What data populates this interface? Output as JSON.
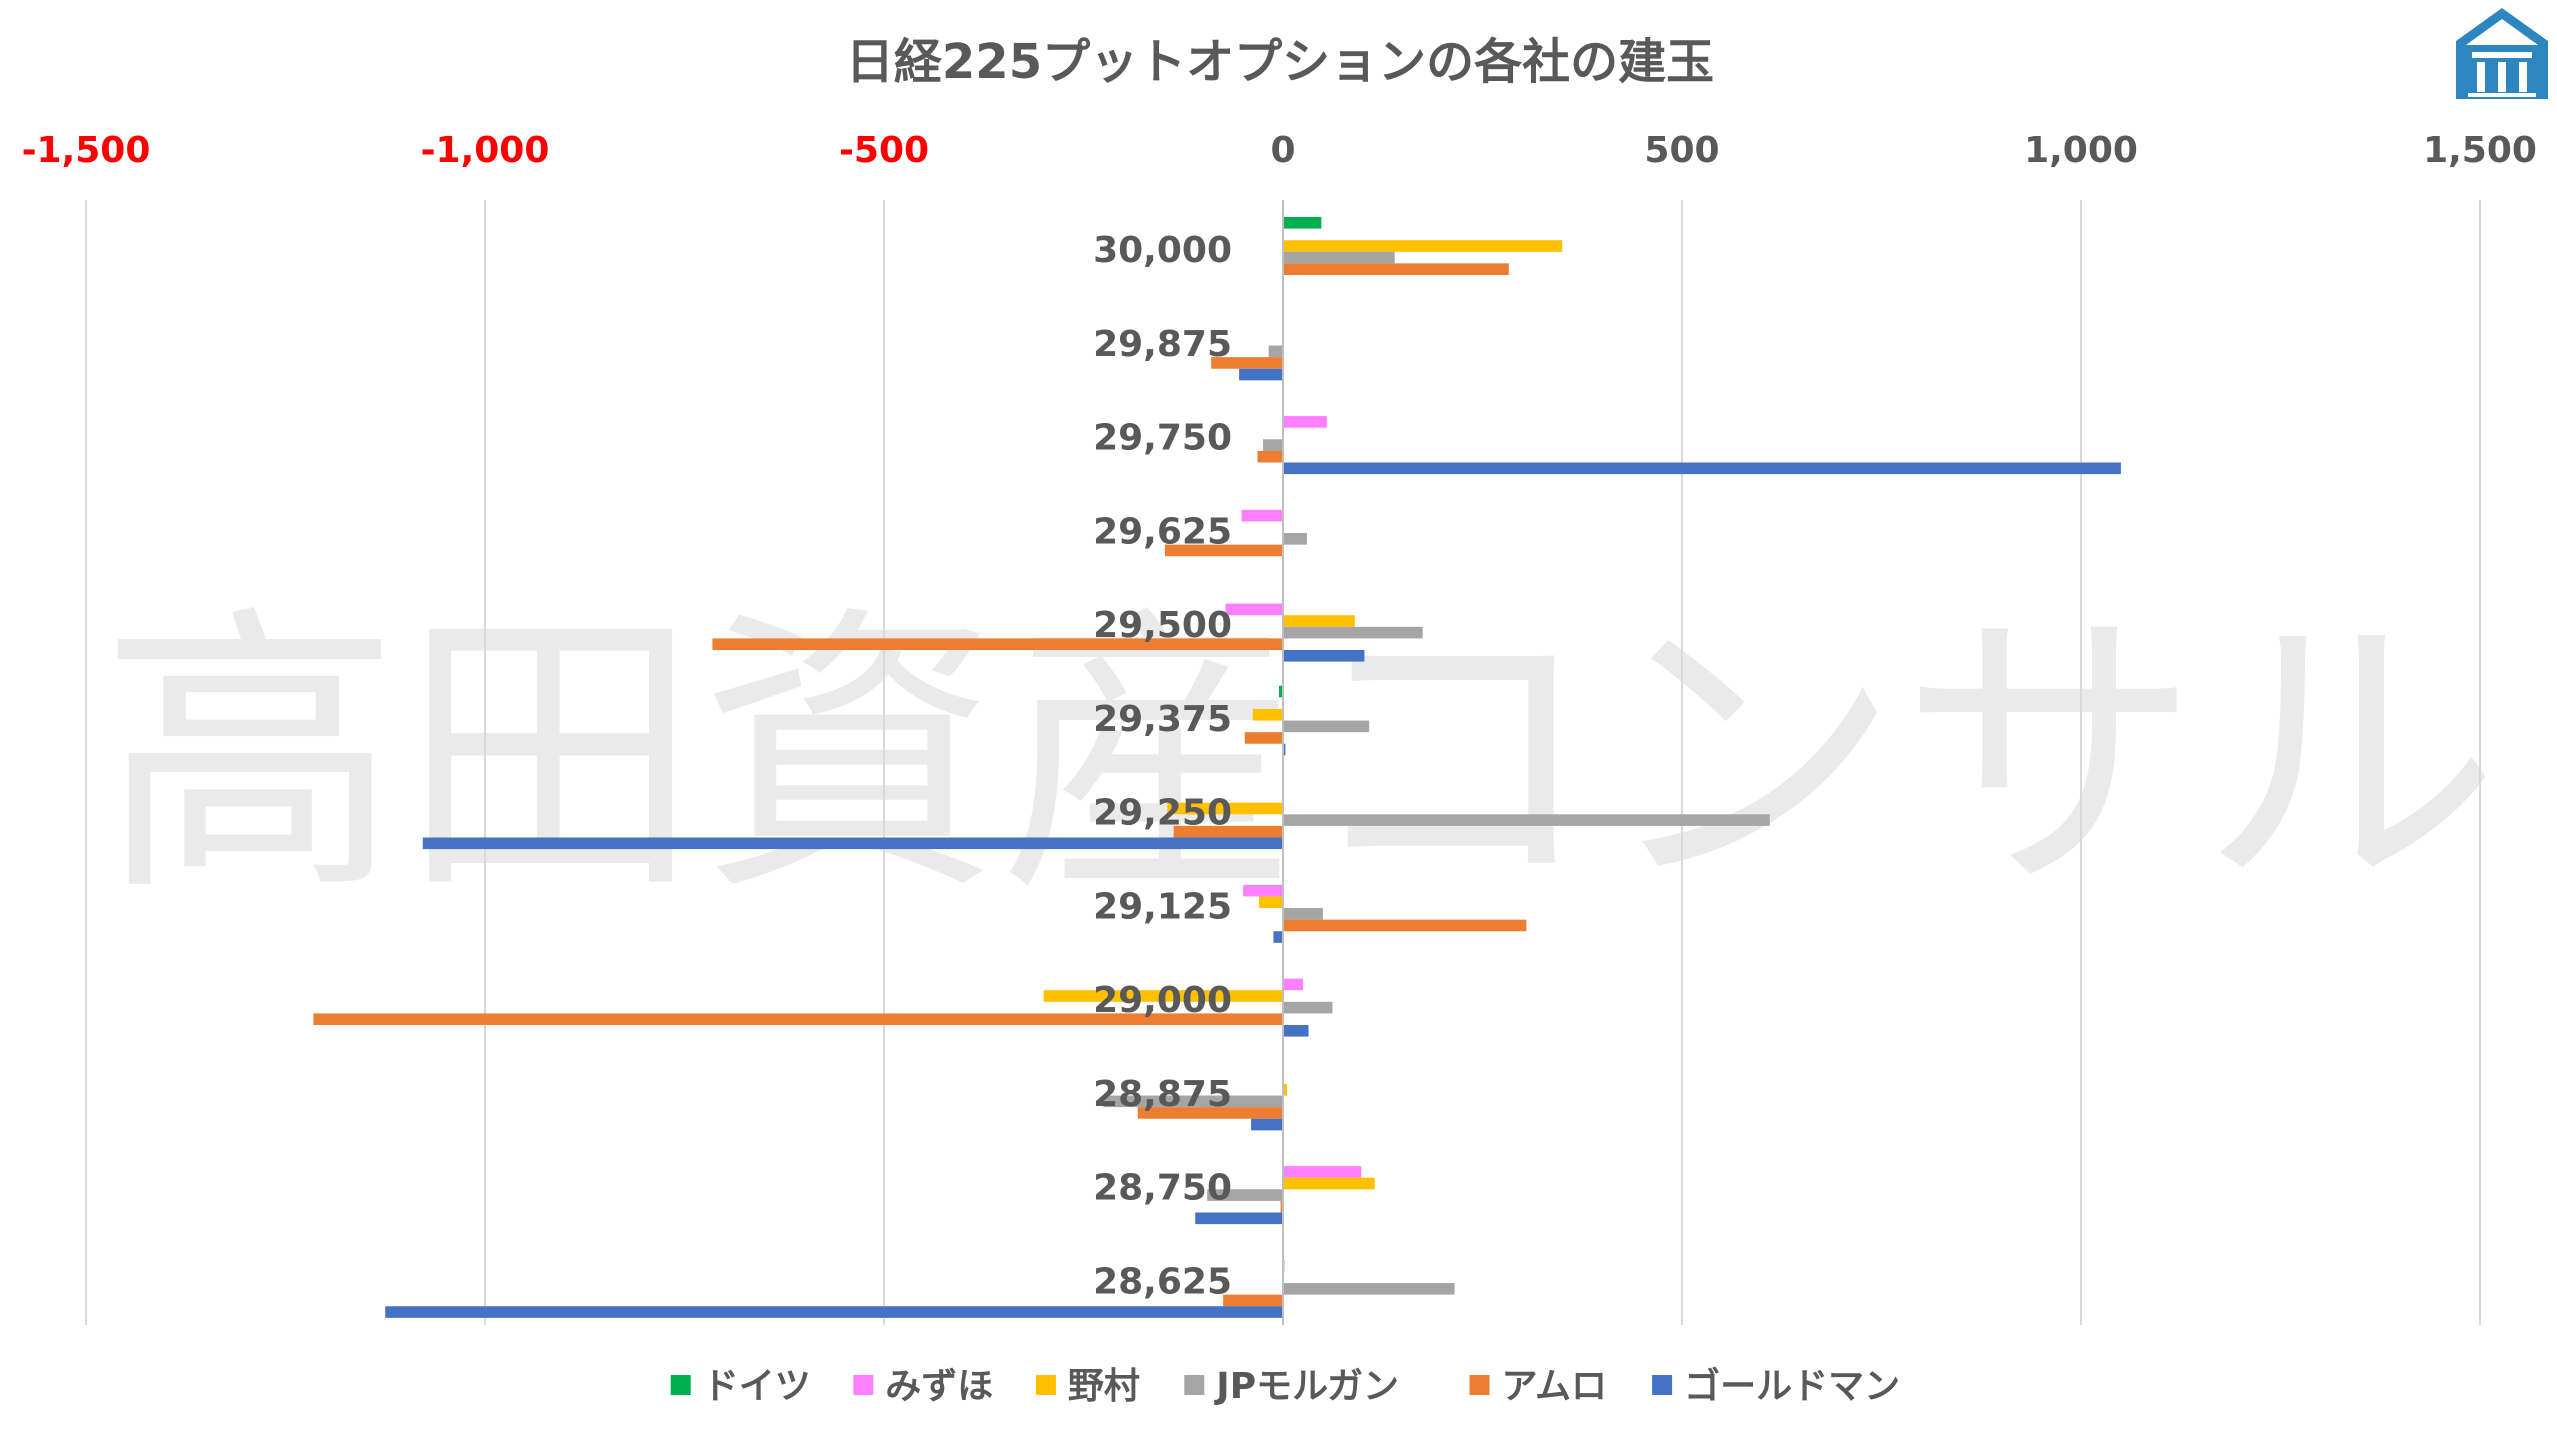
{
  "watermark": "高田資産コンサル",
  "chart_data": {
    "type": "bar",
    "orientation": "horizontal",
    "title": "日経225プットオプションの各社の建玉",
    "xlim": [
      -1500,
      1500
    ],
    "x_ticks": [
      "-1,500",
      "-1,000",
      "-500",
      "0",
      "500",
      "1,000",
      "1,500"
    ],
    "x_tick_values": [
      -1500,
      -1000,
      -500,
      0,
      500,
      1000,
      1500
    ],
    "negative_tick_color": "#ff0000",
    "tick_color": "#595959",
    "grid": true,
    "legend_position": "bottom",
    "categories": [
      "30,000",
      "29,875",
      "29,750",
      "29,625",
      "29,500",
      "29,375",
      "29,250",
      "29,125",
      "29,000",
      "28,875",
      "28,750",
      "28,625"
    ],
    "series": [
      {
        "name": "ドイツ",
        "color": "#00b050",
        "values": [
          48,
          0,
          0,
          0,
          0,
          -5,
          0,
          0,
          0,
          0,
          0,
          0
        ]
      },
      {
        "name": "みずほ",
        "color": "#ff80ff",
        "values": [
          0,
          0,
          55,
          -52,
          -72,
          0,
          0,
          -50,
          25,
          0,
          98,
          2
        ]
      },
      {
        "name": "野村",
        "color": "#ffc000",
        "values": [
          350,
          0,
          0,
          0,
          90,
          -38,
          -145,
          -30,
          -300,
          5,
          115,
          0
        ]
      },
      {
        "name": "JPモルガン",
        "color": "#a5a5a5",
        "values": [
          140,
          -18,
          -25,
          30,
          175,
          108,
          610,
          50,
          62,
          -225,
          -95,
          215
        ]
      },
      {
        "name": "アムロ",
        "color": "#ed7d31",
        "values": [
          283,
          -90,
          -32,
          -148,
          -715,
          -48,
          -137,
          305,
          -1215,
          -182,
          -3,
          -75
        ]
      },
      {
        "name": "ゴールドマン",
        "color": "#4472c4",
        "values": [
          0,
          -55,
          1050,
          0,
          102,
          3,
          -1078,
          -12,
          32,
          -40,
          -110,
          -1125
        ]
      }
    ]
  }
}
